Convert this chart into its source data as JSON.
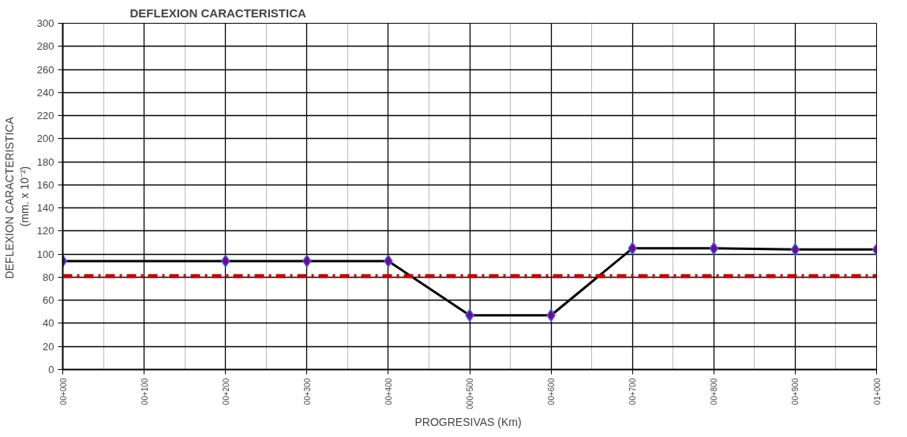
{
  "chart_data": {
    "type": "line",
    "title": "DEFLEXION CARACTERISTICA",
    "xlabel": "PROGRESIVAS  (Km)",
    "ylabel": "DEFLEXION  CARACTERISTICA\n(mm. x 10⁻²)",
    "categories": [
      "00+000",
      "00+100",
      "00+200",
      "00+300",
      "00+400",
      "000+500",
      "00+600",
      "00+700",
      "00+800",
      "00+900",
      "01+000"
    ],
    "series": [
      {
        "color": "#000000",
        "values": [
          94,
          null,
          94,
          94,
          94,
          47,
          47,
          105,
          105,
          104,
          104
        ]
      }
    ],
    "marker": "diamond",
    "line_style": "solid",
    "ylim": [
      0,
      300
    ],
    "yticks": [
      0,
      20,
      40,
      60,
      80,
      100,
      120,
      140,
      160,
      180,
      200,
      220,
      240,
      260,
      280,
      300
    ],
    "ref_lines": [
      {
        "axis": "y",
        "value": 81,
        "color": "#c00000",
        "line_style": "dashed"
      }
    ],
    "grid": true
  }
}
